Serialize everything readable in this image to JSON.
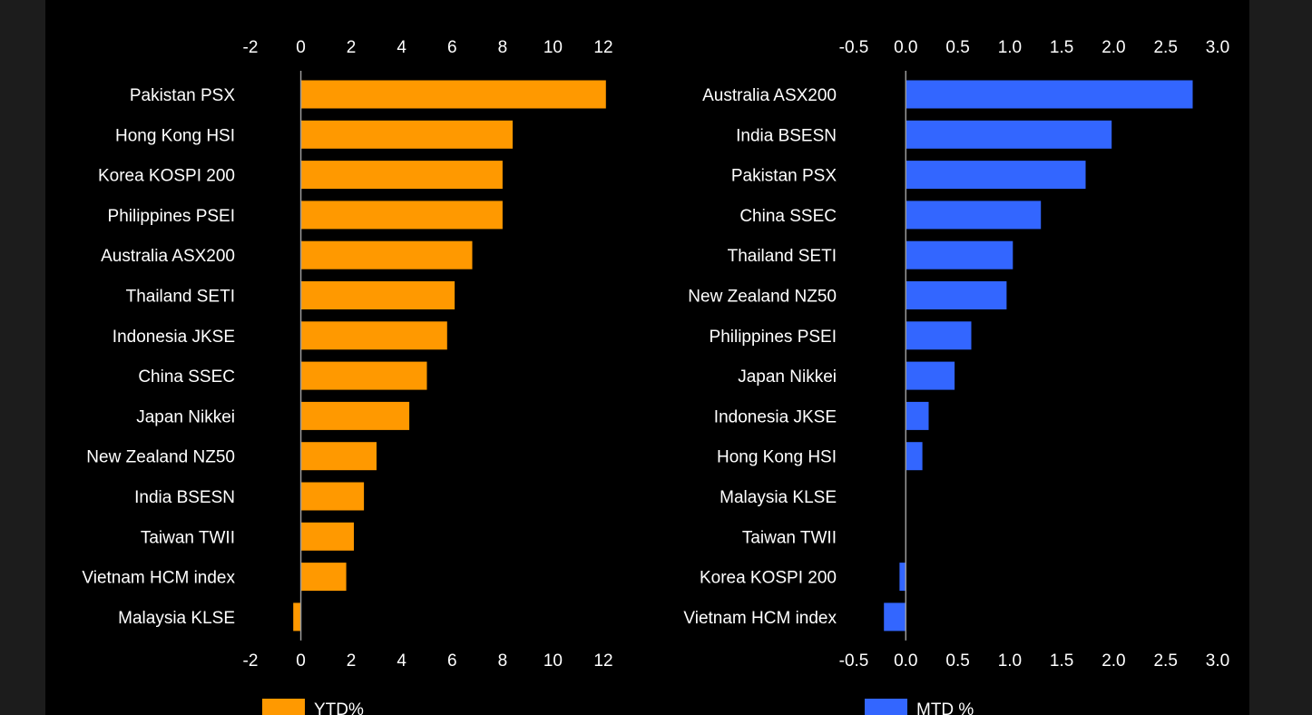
{
  "colors": {
    "ytd": "#ff9900",
    "mtd": "#3366ff",
    "background": "#000000",
    "text": "#ffffff"
  },
  "chart_data": [
    {
      "type": "bar",
      "orientation": "horizontal",
      "xlim": [
        -2,
        12
      ],
      "ticks": [
        "-2",
        "0",
        "2",
        "4",
        "6",
        "8",
        "10",
        "12"
      ],
      "tick_values": [
        -2,
        0,
        2,
        4,
        6,
        8,
        10,
        12
      ],
      "categories": [
        "Pakistan PSX",
        "Hong Kong HSI",
        "Korea KOSPI 200",
        "Philippines PSEI",
        "Australia ASX200",
        "Thailand SETI",
        "Indonesia JKSE",
        "China SSEC",
        "Japan Nikkei",
        "New Zealand NZ50",
        "India BSESN",
        "Taiwan TWII",
        "Vietnam HCM index",
        "Malaysia KLSE"
      ],
      "series": [
        {
          "name": "YTD%",
          "values": [
            12.1,
            8.4,
            8.0,
            8.0,
            6.8,
            6.1,
            5.8,
            5.0,
            4.3,
            3.0,
            2.5,
            2.1,
            1.8,
            -0.3
          ]
        }
      ],
      "legend_position": "bottom",
      "grid": false
    },
    {
      "type": "bar",
      "orientation": "horizontal",
      "xlim": [
        -0.5,
        3.0
      ],
      "ticks": [
        "-0.5",
        "0.0",
        "0.5",
        "1.0",
        "1.5",
        "2.0",
        "2.5",
        "3.0"
      ],
      "tick_values": [
        -0.5,
        0.0,
        0.5,
        1.0,
        1.5,
        2.0,
        2.5,
        3.0
      ],
      "categories": [
        "Australia ASX200",
        "India BSESN",
        "Pakistan PSX",
        "China SSEC",
        "Thailand SETI",
        "New Zealand NZ50",
        "Philippines PSEI",
        "Japan Nikkei",
        "Indonesia JKSE",
        "Hong Kong HSI",
        "Malaysia KLSE",
        "Taiwan TWII",
        "Korea KOSPI 200",
        "Vietnam HCM index"
      ],
      "series": [
        {
          "name": "MTD %",
          "values": [
            2.76,
            1.98,
            1.73,
            1.3,
            1.03,
            0.97,
            0.63,
            0.47,
            0.22,
            0.16,
            0.0,
            0.0,
            -0.06,
            -0.21
          ]
        }
      ],
      "legend_position": "bottom",
      "grid": false
    }
  ]
}
